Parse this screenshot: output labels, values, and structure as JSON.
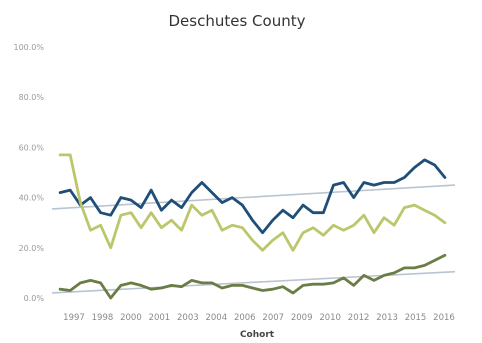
{
  "chart_data": {
    "type": "line",
    "title": "Deschutes County",
    "xlabel": "Cohort",
    "ylabel": "",
    "ylim": [
      0,
      100
    ],
    "y_ticks": [
      "100.0%",
      "80.0%",
      "60.0%",
      "40.0%",
      "20.0%",
      "0.0%"
    ],
    "x_tick_labels": [
      "1997",
      "1998",
      "2000",
      "2001",
      "2003",
      "2004",
      "2006",
      "2007",
      "2009",
      "2010",
      "2012",
      "2013",
      "2015",
      "2016"
    ],
    "x": [
      1997,
      1997.5,
      1998,
      1998.5,
      1999,
      1999.5,
      2000,
      2000.5,
      2001,
      2001.5,
      2002,
      2002.5,
      2003,
      2003.5,
      2004,
      2004.5,
      2005,
      2005.5,
      2006,
      2006.5,
      2007,
      2007.5,
      2008,
      2008.5,
      2009,
      2009.5,
      2010,
      2010.5,
      2011,
      2011.5,
      2012,
      2012.5,
      2013,
      2013.5,
      2014,
      2014.5,
      2015,
      2015.5,
      2016
    ],
    "grid": false,
    "legend": "none",
    "colors": {
      "dark_blue": "#1f4e79",
      "olive_light": "#bcc66a",
      "olive_dark": "#6b7d46",
      "trend": "#b8c4d0"
    },
    "series": [
      {
        "color": "#1f4e79",
        "values": [
          42,
          43,
          37,
          40,
          34,
          33,
          40,
          39,
          36,
          43,
          35,
          39,
          36,
          42,
          46,
          42,
          38,
          40,
          37,
          31,
          26,
          31,
          35,
          32,
          37,
          34,
          34,
          45,
          46,
          40,
          46,
          45,
          46,
          46,
          48,
          52,
          55,
          53,
          48
        ]
      },
      {
        "color": "#bcc66a",
        "values": [
          57,
          57,
          38,
          27,
          29,
          20,
          33,
          34,
          28,
          34,
          28,
          31,
          27,
          37,
          33,
          35,
          27,
          29,
          28,
          23,
          19,
          23,
          26,
          19,
          26,
          28,
          25,
          29,
          27,
          29,
          33,
          26,
          32,
          29,
          36,
          37,
          35,
          33,
          30
        ]
      },
      {
        "color": "#6b7d46",
        "values": [
          3.5,
          3,
          6,
          7,
          6,
          0,
          5,
          6,
          5,
          3.5,
          4,
          5,
          4.5,
          7,
          6,
          6,
          4,
          5,
          5,
          4,
          3,
          3.5,
          4.5,
          2,
          5,
          5.5,
          5.5,
          6,
          8,
          5,
          9,
          7,
          9,
          10,
          12,
          12,
          13,
          15,
          17
        ]
      }
    ],
    "trend_lines": [
      {
        "color": "#b8c4d0",
        "start": [
          1996.6,
          35.5
        ],
        "end": [
          2016.5,
          45
        ]
      },
      {
        "color": "#b8c4d0",
        "start": [
          1996.6,
          2
        ],
        "end": [
          2016.5,
          10.5
        ]
      }
    ]
  }
}
